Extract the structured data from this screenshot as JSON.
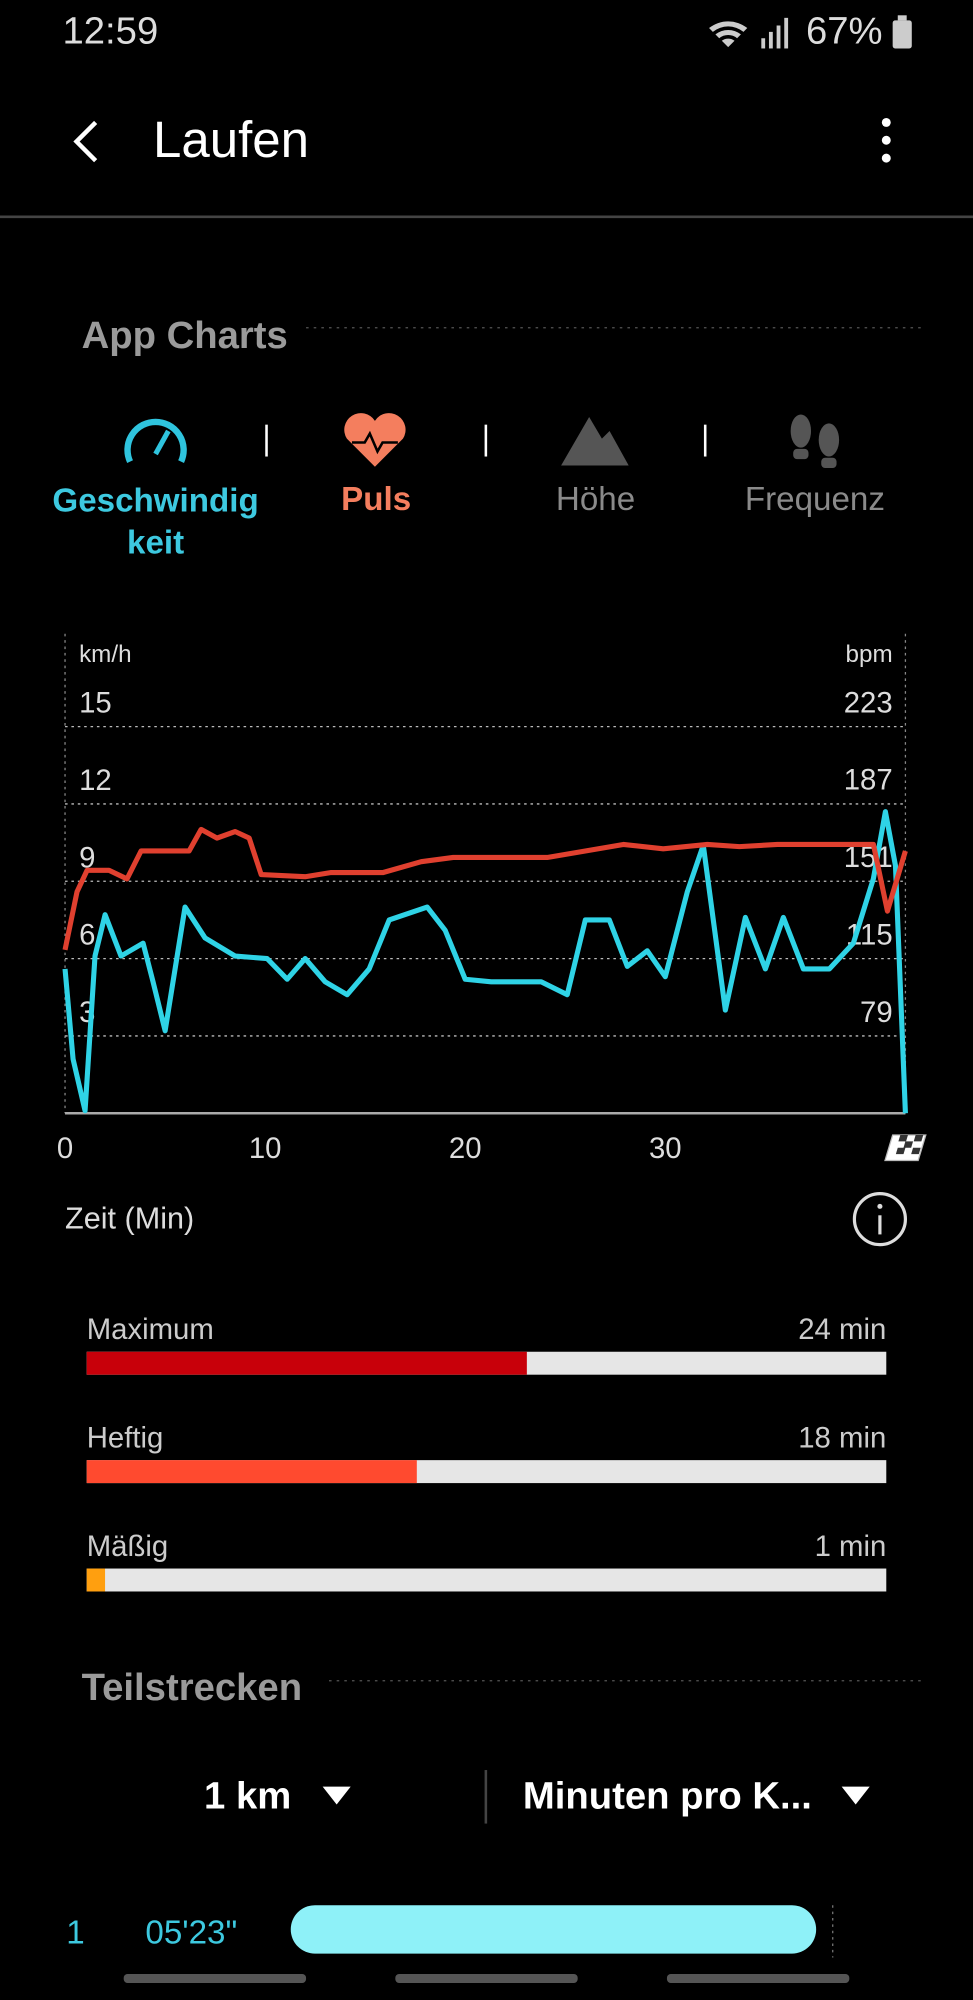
{
  "status_bar": {
    "time": "12:59",
    "battery": "67%"
  },
  "header": {
    "title": "Laufen"
  },
  "section_charts": "App Charts",
  "tabs": [
    {
      "label_lines": [
        "Geschwindig",
        "keit"
      ]
    },
    {
      "label": "Puls"
    },
    {
      "label": "Höhe"
    },
    {
      "label": "Frequenz"
    }
  ],
  "chart_data": [
    {
      "type": "line",
      "xlabel": "Zeit (Min)",
      "ylabel": "km/h",
      "y2label": "bpm",
      "xlim": [
        0,
        42
      ],
      "xticks": [
        0,
        10,
        20,
        30
      ],
      "ylim": [
        0,
        18.6
      ],
      "yticks": [
        3,
        6,
        9,
        12,
        15
      ],
      "y2lim": [
        43,
        266
      ],
      "y2ticks": [
        79,
        115,
        151,
        187,
        223
      ],
      "grid": true,
      "series": [
        {
          "color": "#2fd3e6",
          "x": [
            0,
            0.4,
            1,
            1.5,
            2,
            2.8,
            3.9,
            4.4,
            5,
            6,
            7,
            8.5,
            10.1,
            11.1,
            12,
            13,
            14.1,
            15.2,
            16.2,
            18.1,
            19,
            20,
            21.3,
            22.9,
            23.8,
            25.1,
            26,
            27.2,
            28.1,
            29.1,
            30,
            31.1,
            31.9,
            33,
            34,
            35,
            35.9,
            36.9,
            38.2,
            39.4,
            40.4,
            41,
            41.5,
            42
          ],
          "values": [
            5.6,
            2.1,
            0.1,
            6.1,
            7.7,
            6.1,
            6.6,
            5.1,
            3.2,
            8.0,
            6.8,
            6.1,
            6.0,
            5.2,
            6.0,
            5.1,
            4.6,
            5.6,
            7.5,
            8.0,
            7.1,
            5.2,
            5.1,
            5.1,
            5.1,
            4.6,
            7.5,
            7.5,
            5.7,
            6.3,
            5.3,
            8.6,
            10.4,
            4.0,
            7.6,
            5.6,
            7.6,
            5.6,
            5.6,
            6.6,
            9.1,
            11.7,
            9.6,
            0
          ]
        },
        {
          "color": "#e0402f",
          "axis": "y2",
          "x": [
            0,
            0.6,
            1.1,
            2.2,
            3.1,
            3.8,
            6.2,
            6.8,
            7.6,
            8.5,
            9.2,
            9.8,
            12,
            13.3,
            15.9,
            17.8,
            19.4,
            21.6,
            24.1,
            26,
            27.9,
            29.9,
            32.1,
            33.7,
            35.6,
            38.8,
            40.4,
            41.1,
            42
          ],
          "values": [
            119,
            146,
            156,
            156,
            152,
            165,
            165,
            175,
            171,
            174,
            171,
            154,
            153,
            155,
            155,
            160,
            162,
            162,
            162,
            165,
            168,
            166,
            168,
            167,
            168,
            168,
            168,
            137,
            165
          ]
        }
      ]
    },
    {
      "type": "hbar",
      "categories": [
        "Maximum",
        "Heftig",
        "Mäßig"
      ],
      "values": [
        24,
        18,
        1
      ],
      "value_labels": [
        "24 min",
        "18 min",
        "1 min"
      ],
      "colors": [
        "#c8000a",
        "#ff4a2f",
        "#ff9f0f"
      ],
      "track_color": "#e6e6e6",
      "xlim": [
        0,
        43.6
      ]
    }
  ],
  "section_splits": "Teilstrecken",
  "splits_controls": {
    "distance": "1 km",
    "unit": "Minuten pro K..."
  },
  "splits": [
    {
      "index": "1",
      "time": "05'23\""
    }
  ]
}
